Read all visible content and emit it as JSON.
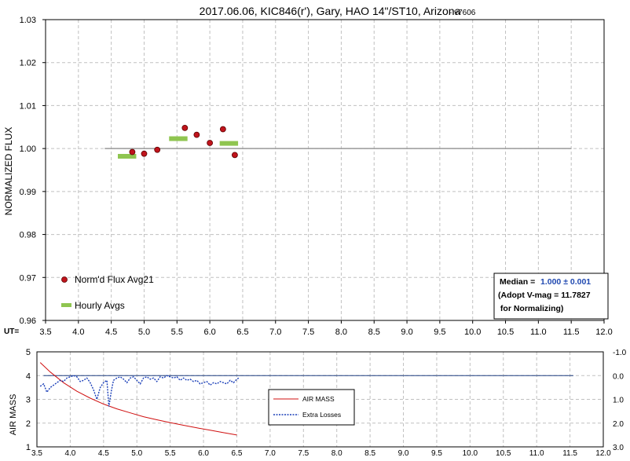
{
  "chart_data": [
    {
      "type": "scatter",
      "title": "2017.06.06, KIC846(r'), Gary, HAO 14\"/ST10, Arizona",
      "title_suffix": "- v7606",
      "ylabel": "NORMALIZED FLUX",
      "xlabel_prefix": "UT=",
      "xlim": [
        3.5,
        12.0
      ],
      "ylim": [
        0.96,
        1.03
      ],
      "x_ticks": [
        "3.5",
        "4.0",
        "4.5",
        "5.0",
        "5.5",
        "6.0",
        "6.5",
        "7.0",
        "7.5",
        "8.0",
        "8.5",
        "9.0",
        "9.5",
        "10.0",
        "10.5",
        "11.0",
        "11.5",
        "12.0"
      ],
      "y_ticks": [
        "0.96",
        "0.97",
        "0.98",
        "0.99",
        "1.00",
        "1.01",
        "1.02",
        "1.03"
      ],
      "grid": true,
      "reference_line": {
        "y": 1.0,
        "x": [
          4.4,
          11.5
        ]
      },
      "series": [
        {
          "name": "Norm'd Flux Avg21",
          "color": "#c0141c",
          "marker": "circle",
          "points": [
            {
              "x": 4.82,
              "y": 0.9992
            },
            {
              "x": 5.0,
              "y": 0.9988
            },
            {
              "x": 5.2,
              "y": 0.9997
            },
            {
              "x": 5.62,
              "y": 1.0048
            },
            {
              "x": 5.8,
              "y": 1.0032
            },
            {
              "x": 6.0,
              "y": 1.0013
            },
            {
              "x": 6.2,
              "y": 1.0045
            },
            {
              "x": 6.38,
              "y": 0.9985
            }
          ]
        },
        {
          "name": "Hourly Avgs",
          "color": "#8fc550",
          "marker": "bar",
          "segments": [
            {
              "x0": 4.6,
              "x1": 4.88,
              "y": 0.9982
            },
            {
              "x0": 5.38,
              "x1": 5.66,
              "y": 1.0023
            },
            {
              "x0": 6.15,
              "x1": 6.43,
              "y": 1.0012
            }
          ]
        }
      ],
      "legend_position": "bottom-left",
      "annotation": {
        "median_label": "Median =",
        "median_value": "1.000 ± 0.001",
        "line2": "(Adopt V-mag = 11.7827",
        "line3": " for Normalizing)"
      }
    },
    {
      "type": "line",
      "ylabel": "AIR MASS",
      "xlim": [
        3.5,
        12.0
      ],
      "ylim_left": [
        1,
        5
      ],
      "ylim_right": [
        3.0,
        -1.0
      ],
      "x_ticks": [
        "3.5",
        "4.0",
        "4.5",
        "5.0",
        "5.5",
        "6.0",
        "6.5",
        "7.0",
        "7.5",
        "8.0",
        "8.5",
        "9.0",
        "9.5",
        "10.0",
        "10.5",
        "11.0",
        "11.5",
        "12.0"
      ],
      "y_ticks_left": [
        "1",
        "2",
        "3",
        "4",
        "5"
      ],
      "y_ticks_right": [
        "3.0",
        "2.0",
        "1.0",
        "0.0",
        "-1.0"
      ],
      "grid": true,
      "reference_line": {
        "y_right": 0.0,
        "x": [
          3.6,
          11.55
        ]
      },
      "series": [
        {
          "name": "AIR MASS",
          "color": "#d01010",
          "axis": "left",
          "x": [
            3.55,
            3.7,
            3.9,
            4.1,
            4.3,
            4.5,
            4.7,
            4.9,
            5.1,
            5.3,
            5.5,
            5.7,
            5.9,
            6.1,
            6.3,
            6.5
          ],
          "y": [
            4.55,
            4.15,
            3.7,
            3.34,
            3.05,
            2.8,
            2.6,
            2.43,
            2.27,
            2.14,
            2.02,
            1.91,
            1.8,
            1.7,
            1.6,
            1.5
          ]
        },
        {
          "name": "Extra Losses",
          "color": "#1a3fb8",
          "axis": "right",
          "x": [
            3.55,
            3.6,
            3.65,
            3.7,
            3.75,
            3.8,
            3.85,
            3.9,
            3.95,
            4.0,
            4.05,
            4.1,
            4.15,
            4.2,
            4.25,
            4.3,
            4.35,
            4.4,
            4.45,
            4.5,
            4.55,
            4.58,
            4.62,
            4.65,
            4.7,
            4.75,
            4.8,
            4.85,
            4.9,
            4.95,
            5.0,
            5.05,
            5.1,
            5.15,
            5.2,
            5.25,
            5.3,
            5.35,
            5.4,
            5.45,
            5.5,
            5.55,
            5.6,
            5.65,
            5.7,
            5.75,
            5.8,
            5.85,
            5.9,
            5.95,
            6.0,
            6.05,
            6.1,
            6.15,
            6.2,
            6.25,
            6.3,
            6.35,
            6.4,
            6.45,
            6.5,
            6.53
          ],
          "y": [
            0.45,
            0.35,
            0.7,
            0.5,
            0.4,
            0.3,
            0.2,
            0.25,
            0.1,
            0.05,
            0.0,
            0.05,
            0.25,
            0.2,
            0.1,
            0.3,
            0.6,
            1.0,
            0.5,
            0.3,
            0.2,
            1.3,
            0.6,
            0.2,
            0.1,
            0.05,
            0.15,
            0.3,
            0.1,
            0.05,
            0.2,
            0.35,
            0.1,
            0.05,
            0.15,
            0.1,
            0.25,
            0.05,
            0.1,
            0.0,
            0.05,
            0.1,
            0.05,
            0.2,
            0.1,
            0.2,
            0.15,
            0.25,
            0.2,
            0.35,
            0.3,
            0.25,
            0.4,
            0.3,
            0.35,
            0.25,
            0.3,
            0.35,
            0.2,
            0.3,
            0.15,
            0.1
          ]
        }
      ],
      "legend_position": "center-right"
    }
  ]
}
